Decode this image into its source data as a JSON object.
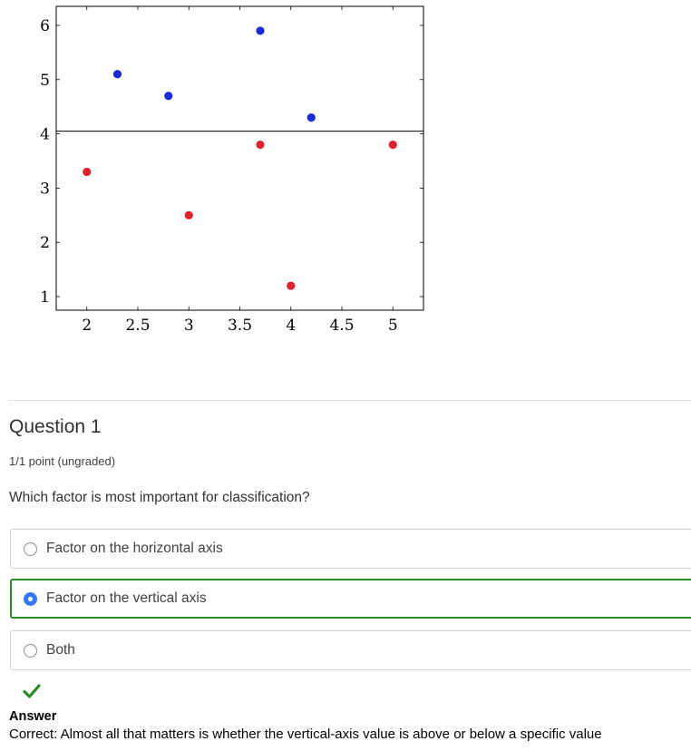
{
  "chart_data": {
    "type": "scatter",
    "xlim": [
      1.7,
      5.3
    ],
    "ylim": [
      0.75,
      6.35
    ],
    "x_ticks": [
      2,
      2.5,
      3,
      3.5,
      4,
      4.5,
      5
    ],
    "x_tick_labels": [
      "2",
      "2.5",
      "3",
      "3.5",
      "4",
      "4.5",
      "5"
    ],
    "y_ticks": [
      1,
      2,
      3,
      4,
      5,
      6
    ],
    "y_tick_labels": [
      "1",
      "2",
      "3",
      "4",
      "5",
      "6"
    ],
    "threshold_line_y": 4.05,
    "grid": false,
    "series": [
      {
        "color": "#1a2ad6",
        "points": [
          {
            "x": 2.3,
            "y": 5.1
          },
          {
            "x": 2.8,
            "y": 4.7
          },
          {
            "x": 3.7,
            "y": 5.9
          },
          {
            "x": 4.2,
            "y": 4.3
          }
        ]
      },
      {
        "color": "#e0202f",
        "points": [
          {
            "x": 2.0,
            "y": 3.3
          },
          {
            "x": 3.0,
            "y": 2.5
          },
          {
            "x": 3.7,
            "y": 3.8
          },
          {
            "x": 4.0,
            "y": 1.2
          },
          {
            "x": 5.0,
            "y": 3.8
          }
        ]
      }
    ],
    "title": "",
    "xlabel": "",
    "ylabel": ""
  },
  "question": {
    "title": "Question 1",
    "points": "1/1 point (ungraded)",
    "prompt": "Which factor is most important for classification?",
    "options": [
      {
        "label": "Factor on the horizontal axis",
        "selected": false
      },
      {
        "label": "Factor on the vertical axis",
        "selected": true
      },
      {
        "label": "Both",
        "selected": false
      }
    ]
  },
  "feedback": {
    "status_icon": "check-icon",
    "status_color": "#2b8a21",
    "heading": "Answer",
    "text": "Correct:  Almost all that matters is whether the vertical-axis value is above or below a specific value"
  }
}
